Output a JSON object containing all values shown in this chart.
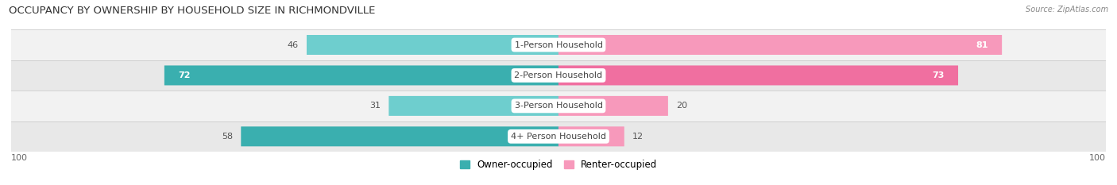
{
  "title": "OCCUPANCY BY OWNERSHIP BY HOUSEHOLD SIZE IN RICHMONDVILLE",
  "source": "Source: ZipAtlas.com",
  "categories": [
    "1-Person Household",
    "2-Person Household",
    "3-Person Household",
    "4+ Person Household"
  ],
  "owner_values": [
    46,
    72,
    31,
    58
  ],
  "renter_values": [
    81,
    73,
    20,
    12
  ],
  "owner_colors": [
    "#6ecece",
    "#3aafaf",
    "#6ecece",
    "#3aafaf"
  ],
  "renter_colors": [
    "#f799bb",
    "#f06fa0",
    "#f799bb",
    "#f799bb"
  ],
  "row_bg_colors": [
    "#f2f2f2",
    "#e8e8e8",
    "#f2f2f2",
    "#e8e8e8"
  ],
  "axis_max": 100,
  "legend_owner": "Owner-occupied",
  "legend_renter": "Renter-occupied",
  "owner_legend_color": "#3aafaf",
  "renter_legend_color": "#f799bb",
  "title_fontsize": 9.5,
  "value_fontsize": 8,
  "category_fontsize": 8,
  "tick_fontsize": 8
}
